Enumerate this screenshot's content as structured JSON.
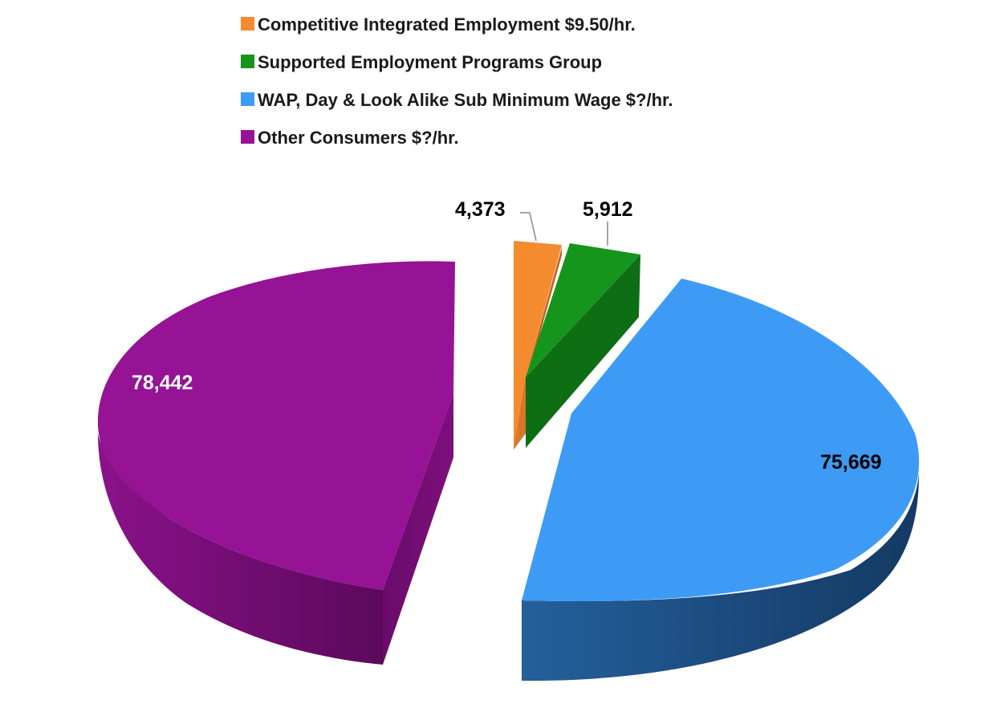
{
  "chart_data": {
    "type": "pie",
    "style": "3d-exploded",
    "legend_position": "top",
    "slices": [
      {
        "name": "Competitive Integrated Employment $9.50/hr.",
        "value": 4373,
        "label": "4,373",
        "color": "#f48b2f"
      },
      {
        "name": "Supported Employment Programs Group",
        "value": 5912,
        "label": "5,912",
        "color": "#16951c"
      },
      {
        "name": "WAP, Day & Look Alike Sub Minimum Wage $?/hr.",
        "value": 75669,
        "label": "75,669",
        "color": "#3d9bf5"
      },
      {
        "name": "Other Consumers $?/hr.",
        "value": 78442,
        "label": "78,442",
        "color": "#951394"
      }
    ]
  }
}
